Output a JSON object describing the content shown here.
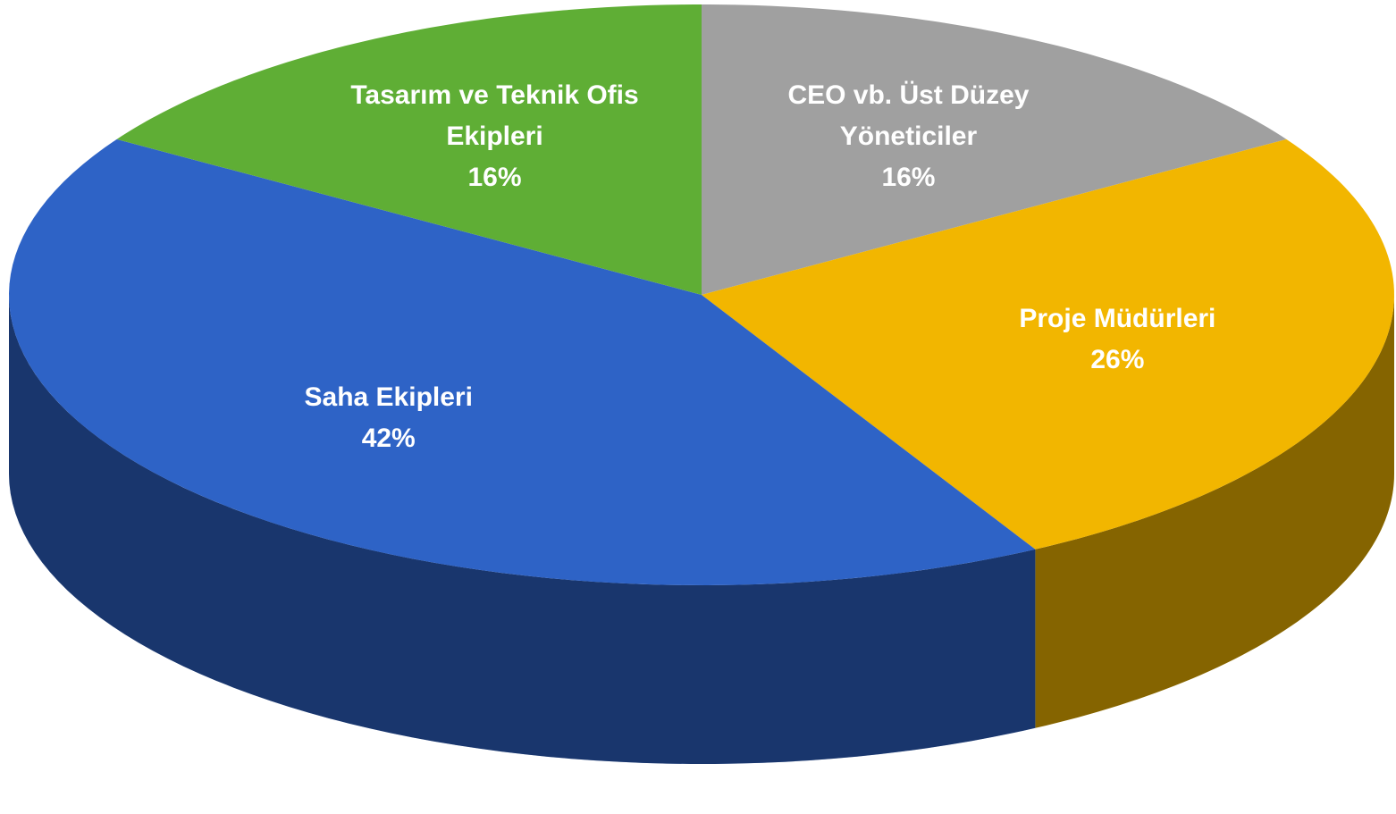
{
  "chart_data": {
    "type": "pie",
    "categories": [
      "CEO vb. Üst Düzey Yöneticiler",
      "Proje Müdürleri",
      "Saha Ekipleri",
      "Tasarım ve Teknik Ofis Ekipleri"
    ],
    "values": [
      16,
      26,
      42,
      16
    ],
    "value_labels": [
      "16%",
      "26%",
      "42%",
      "16%"
    ],
    "colors": [
      "#a0a0a0",
      "#f2b600",
      "#2e63c6",
      "#5fae35"
    ]
  }
}
